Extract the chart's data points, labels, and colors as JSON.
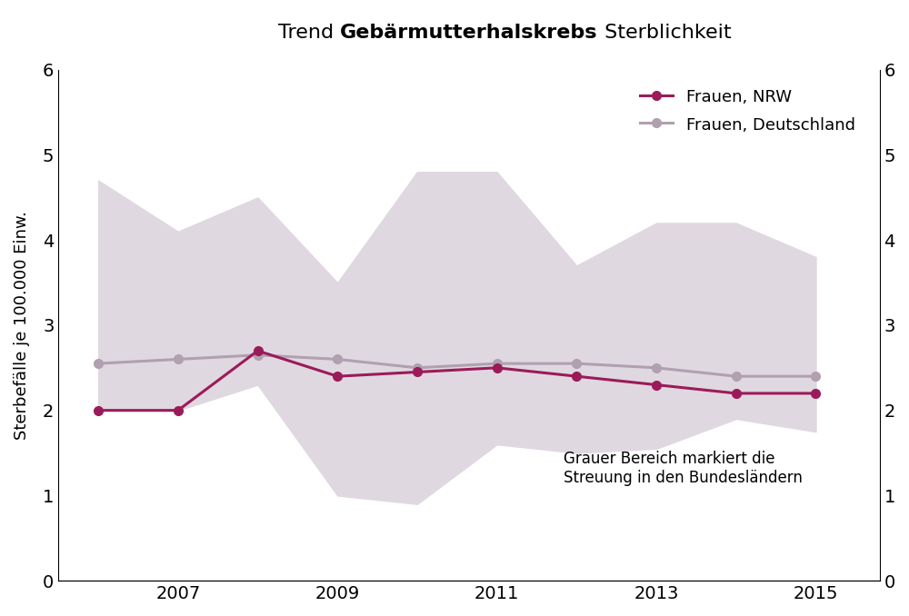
{
  "title_part1": "Trend ",
  "title_bold": "Gebärmutterhalskrebs",
  "title_part2": " Sterblichkeit",
  "years": [
    2006,
    2007,
    2008,
    2009,
    2010,
    2011,
    2012,
    2013,
    2014,
    2015
  ],
  "nrw": [
    2.0,
    2.0,
    2.7,
    2.4,
    2.45,
    2.5,
    2.4,
    2.3,
    2.2,
    2.2
  ],
  "deutschland": [
    2.55,
    2.6,
    2.65,
    2.6,
    2.5,
    2.55,
    2.55,
    2.5,
    2.4,
    2.4
  ],
  "band_upper": [
    4.7,
    4.1,
    4.5,
    3.5,
    4.8,
    4.8,
    3.7,
    4.2,
    4.2,
    3.8
  ],
  "band_lower": [
    2.0,
    2.0,
    2.3,
    1.0,
    0.9,
    1.6,
    1.5,
    1.55,
    1.9,
    1.75
  ],
  "nrw_color": "#9b1b5a",
  "deutschland_color": "#b0a0b0",
  "band_color": "#e0d8e0",
  "ylabel": "Sterbefälle je 100.000 Einw.",
  "ylim": [
    0,
    6
  ],
  "yticks": [
    0,
    1,
    2,
    3,
    4,
    5,
    6
  ],
  "xtick_years": [
    2007,
    2009,
    2011,
    2013,
    2015
  ],
  "annotation": "Grauer Bereich markiert die\nStreuung in den Bundesländern",
  "legend_nrw": "Frauen, NRW",
  "legend_deutschland": "Frauen, Deutschland",
  "bg_color": "#ffffff",
  "marker_size": 7,
  "linewidth": 2.2,
  "title_fontsize": 16,
  "tick_fontsize": 14,
  "ylabel_fontsize": 13,
  "legend_fontsize": 13,
  "annotation_fontsize": 12
}
